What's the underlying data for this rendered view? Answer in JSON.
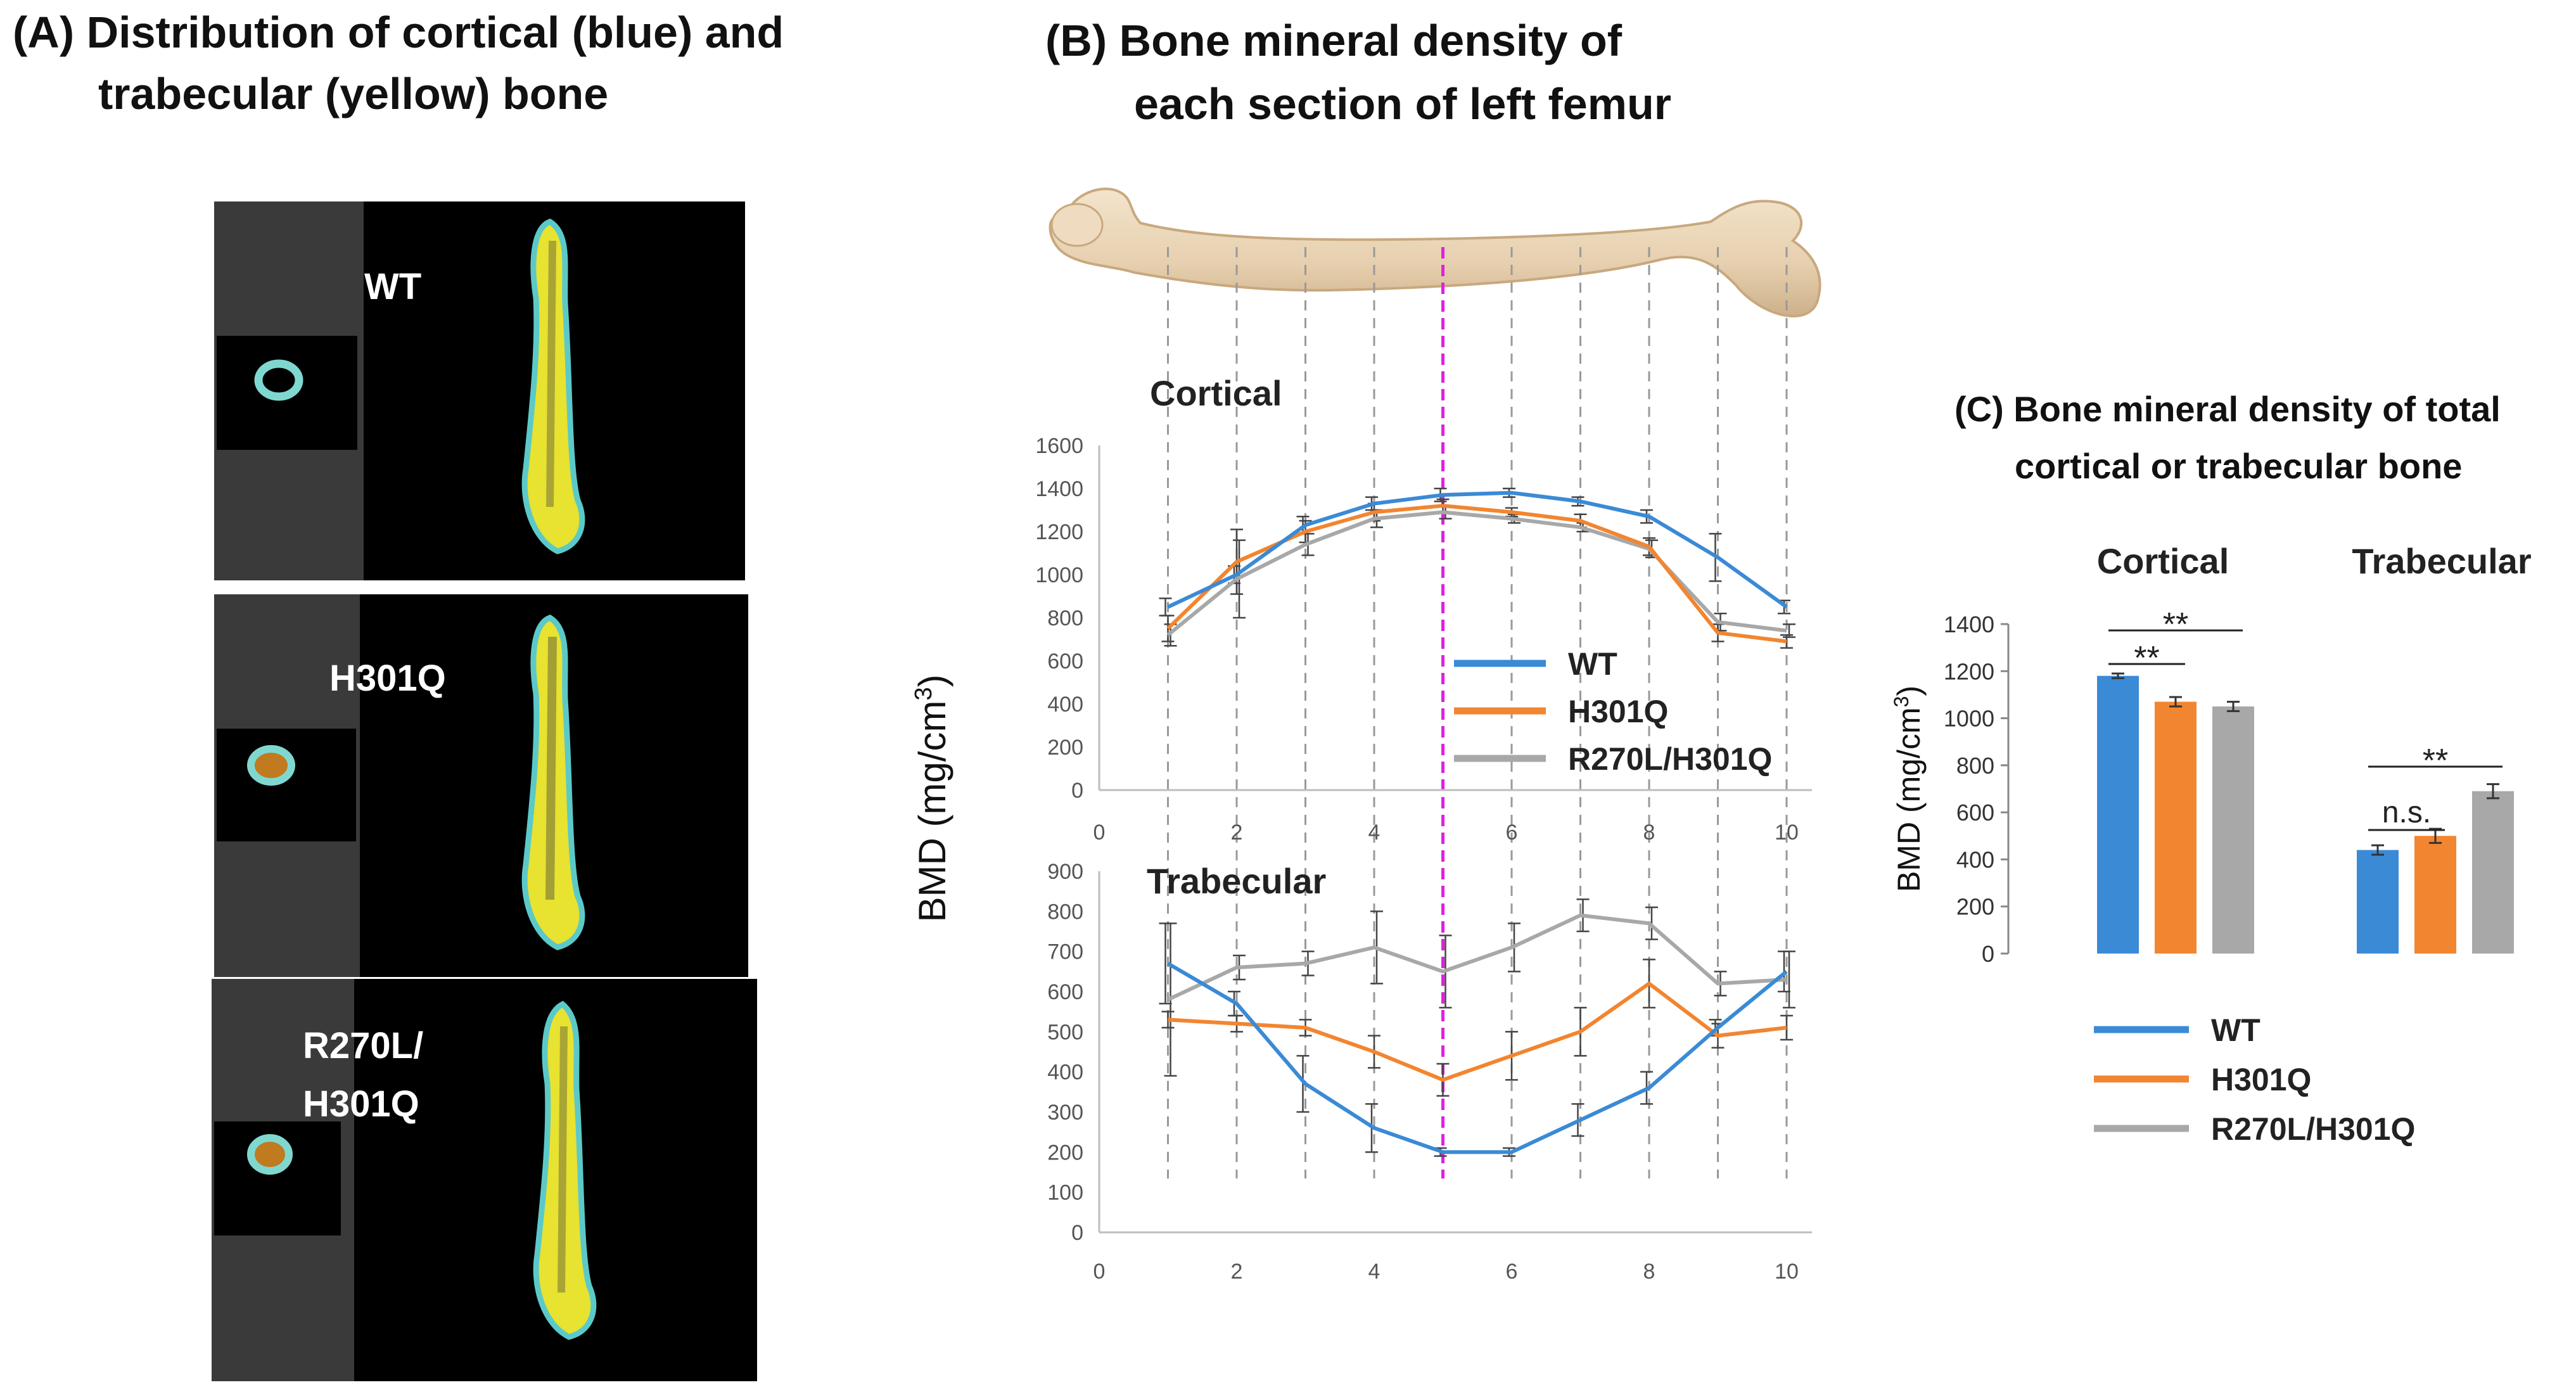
{
  "panel_a": {
    "title_line1": "(A) Distribution of cortical (blue) and",
    "title_line2": "trabecular (yellow) bone",
    "labels": [
      "WT",
      "H301Q",
      "R270L/",
      "H301Q"
    ]
  },
  "panel_b": {
    "title_line1": "(B) Bone mineral density of",
    "title_line2": "each section of left femur",
    "y_label_main": "BMD (mg/cm",
    "y_label_sup": "3",
    "y_label_close": ")"
  },
  "panel_c": {
    "title_line1": "(C) Bone mineral density of total",
    "title_line2": "cortical or trabecular bone",
    "y_label_main": "BMD (mg/cm",
    "y_label_sup": "3",
    "y_label_close": ")"
  },
  "colors": {
    "WT": "#3a8ad6",
    "H301Q": "#f28530",
    "R270L/H301Q": "#a8a8a8",
    "section_marker": "#e020e0"
  },
  "chart_data": [
    {
      "type": "line",
      "title": "Cortical",
      "x": [
        1,
        2,
        3,
        4,
        5,
        6,
        7,
        8,
        9,
        10
      ],
      "xlim": [
        0,
        10
      ],
      "ylim": [
        0,
        1600
      ],
      "xticks": [
        0,
        2,
        4,
        6,
        8,
        10
      ],
      "yticks": [
        0,
        200,
        400,
        600,
        800,
        1000,
        1200,
        1400,
        1600
      ],
      "highlight_x": 5,
      "legend_position": "center-right",
      "series": [
        {
          "name": "WT",
          "values": [
            850,
            1000,
            1230,
            1330,
            1370,
            1380,
            1340,
            1270,
            1080,
            850
          ],
          "err": [
            40,
            40,
            40,
            30,
            30,
            20,
            20,
            30,
            110,
            30
          ]
        },
        {
          "name": "H301Q",
          "values": [
            750,
            1060,
            1200,
            1290,
            1320,
            1290,
            1250,
            1130,
            730,
            690
          ],
          "err": [
            60,
            150,
            50,
            40,
            30,
            20,
            30,
            40,
            40,
            30
          ]
        },
        {
          "name": "R270L/H301Q",
          "values": [
            720,
            980,
            1140,
            1260,
            1290,
            1260,
            1220,
            1120,
            780,
            740
          ],
          "err": [
            50,
            180,
            50,
            40,
            30,
            20,
            20,
            40,
            40,
            30
          ]
        }
      ]
    },
    {
      "type": "line",
      "title": "Trabecular",
      "x": [
        1,
        2,
        3,
        4,
        5,
        6,
        7,
        8,
        9,
        10
      ],
      "xlim": [
        0,
        10
      ],
      "ylim": [
        0,
        900
      ],
      "xticks": [
        0,
        2,
        4,
        6,
        8,
        10
      ],
      "yticks": [
        0,
        100,
        200,
        300,
        400,
        500,
        600,
        700,
        800,
        900
      ],
      "highlight_x": 5,
      "series": [
        {
          "name": "WT",
          "values": [
            670,
            570,
            370,
            260,
            200,
            200,
            280,
            360,
            510,
            650
          ],
          "err": [
            100,
            30,
            70,
            60,
            10,
            10,
            40,
            40,
            20,
            50
          ]
        },
        {
          "name": "H301Q",
          "values": [
            530,
            520,
            510,
            450,
            380,
            440,
            500,
            620,
            490,
            510
          ],
          "err": [
            20,
            20,
            20,
            40,
            40,
            60,
            60,
            60,
            30,
            30
          ]
        },
        {
          "name": "R270L/H301Q",
          "values": [
            580,
            660,
            670,
            710,
            650,
            710,
            790,
            770,
            620,
            630
          ],
          "err": [
            190,
            30,
            30,
            90,
            90,
            60,
            40,
            40,
            30,
            70
          ]
        }
      ]
    },
    {
      "type": "bar",
      "categories": [
        "Cortical",
        "Trabecular"
      ],
      "ylim": [
        0,
        1400
      ],
      "yticks": [
        0,
        200,
        400,
        600,
        800,
        1000,
        1200,
        1400
      ],
      "legend_position": "bottom",
      "series": [
        {
          "name": "WT",
          "values": [
            1180,
            440
          ],
          "err": [
            10,
            20
          ]
        },
        {
          "name": "H301Q",
          "values": [
            1070,
            500
          ],
          "err": [
            20,
            30
          ]
        },
        {
          "name": "R270L/H301Q",
          "values": [
            1050,
            690
          ],
          "err": [
            20,
            30
          ]
        }
      ],
      "annotations": [
        {
          "group": "Cortical",
          "from": "WT",
          "to": "R270L/H301Q",
          "label": "**"
        },
        {
          "group": "Cortical",
          "from": "WT",
          "to": "H301Q",
          "label": "**"
        },
        {
          "group": "Trabecular",
          "from": "WT",
          "to": "H301Q",
          "label": "n.s."
        },
        {
          "group": "Trabecular",
          "from": "WT",
          "to": "R270L/H301Q",
          "label": "**"
        }
      ]
    }
  ]
}
